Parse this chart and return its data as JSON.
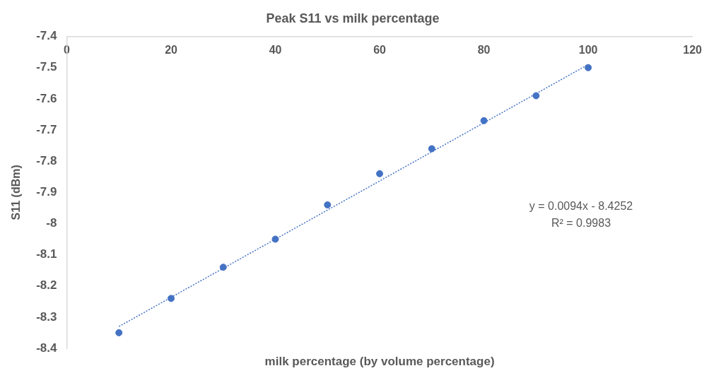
{
  "chart_data": {
    "type": "scatter",
    "title": "Peak S11 vs milk percentage",
    "xlabel": "milk percentage (by volume percentage)",
    "ylabel": "S11 (dBm)",
    "x": [
      10,
      20,
      30,
      40,
      50,
      60,
      70,
      80,
      90,
      100
    ],
    "series": [
      {
        "color": "#4472c4",
        "values": [
          -8.35,
          -8.24,
          -8.14,
          -8.05,
          -7.94,
          -7.84,
          -7.76,
          -7.67,
          -7.59,
          -7.5
        ],
        "marker": "circle"
      },
      {
        "type": "line",
        "color": "#4472c4",
        "x": [
          10,
          100
        ],
        "values": [
          -8.33,
          -7.49
        ],
        "line_style": "dotted",
        "marker": "none"
      }
    ],
    "xlim": [
      0,
      120
    ],
    "xticks": [
      0,
      20,
      40,
      60,
      80,
      100,
      120
    ],
    "ylim": [
      -8.4,
      -7.4
    ],
    "yticks": [
      -8.4,
      -8.3,
      -8.2,
      -8.1,
      -8,
      -7.9,
      -7.8,
      -7.7,
      -7.6,
      -7.5,
      -7.4
    ],
    "grid": false,
    "legend": false,
    "annotations": [
      "y = 0.0094x - 8.4252",
      "R² = 0.9983"
    ]
  }
}
